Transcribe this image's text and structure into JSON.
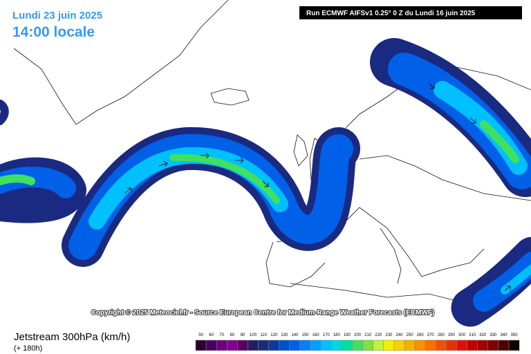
{
  "header": {
    "date": "Lundi 23 juin 2025",
    "time": "14:00 locale",
    "run": "Run ECMWF AIFSv1 0.25° 0 Z du Lundi 16 juin 2025"
  },
  "copyright": "Copyright © 2025 Meteociel.fr - Source European Centre for Medium-Range Weather Forecasts (ECMWF)",
  "footer": {
    "title": "Jetstream 300hPa (km/h)",
    "lead": "(+ 180h)"
  },
  "legend": {
    "labels": [
      50,
      60,
      70,
      80,
      90,
      100,
      110,
      120,
      130,
      140,
      150,
      160,
      170,
      180,
      190,
      200,
      210,
      220,
      230,
      240,
      250,
      260,
      270,
      280,
      290,
      300,
      310,
      320,
      330,
      340,
      350
    ],
    "colors": [
      "#2a0030",
      "#4a0060",
      "#6a0080",
      "#800090",
      "#5a0060",
      "#202060",
      "#1a2a80",
      "#0a3aa0",
      "#0050c8",
      "#0060e8",
      "#0080ff",
      "#00a0ff",
      "#00c0ff",
      "#00d8e0",
      "#00e0a0",
      "#40e060",
      "#80e040",
      "#c0f040",
      "#f0f000",
      "#f8d000",
      "#f8b000",
      "#f89000",
      "#f87000",
      "#f05000",
      "#e83000",
      "#e01000",
      "#c00000",
      "#a00000",
      "#800000",
      "#500000",
      "#100000"
    ]
  }
}
